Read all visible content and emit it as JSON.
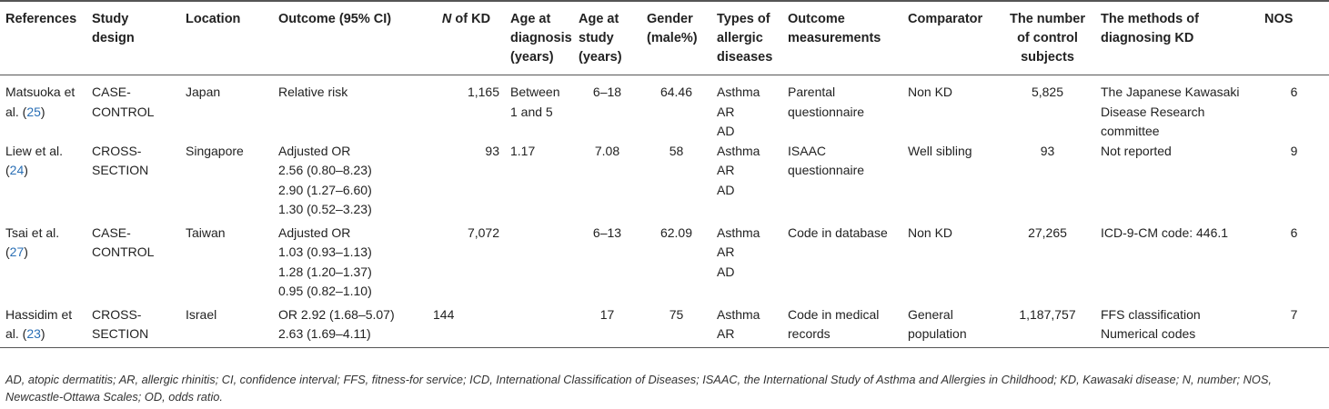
{
  "headers": {
    "references": "References",
    "study_design": "Study design",
    "location": "Location",
    "outcome": "Outcome (95% CI)",
    "n_of_kd_n": "N",
    "n_of_kd_rest": " of KD",
    "age_diagnosis": "Age at diagnosis (years)",
    "age_study": "Age at study (years)",
    "gender": "Gender (male%)",
    "types": "Types of allergic diseases",
    "outcome_measurements": "Outcome measurements",
    "comparator": "Comparator",
    "control_subjects": "The number of control subjects",
    "methods": "The methods of diagnosing KD",
    "nos": "NOS"
  },
  "rows": [
    {
      "ref_text": "Matsuoka et al. (",
      "ref_num": "25",
      "ref_close": ")",
      "design": "CASE-CONTROL",
      "location": "Japan",
      "outcome": "Relative risk",
      "n_kd": "1,165",
      "age_diag": "Between 1 and 5",
      "age_study": "6–18",
      "gender": "64.46",
      "types": "Asthma\nAR\nAD",
      "measurements": "Parental questionnaire",
      "comparator": "Non KD",
      "controls": "5,825",
      "methods": "The Japanese Kawasaki Disease Research committee",
      "nos": "6"
    },
    {
      "ref_text": "Liew et al. (",
      "ref_num": "24",
      "ref_close": ")",
      "design": "CROSS-SECTION",
      "location": "Singapore",
      "outcome": "Adjusted OR\n2.56 (0.80–8.23)\n2.90 (1.27–6.60)\n1.30 (0.52–3.23)",
      "n_kd": "93",
      "age_diag": "1.17",
      "age_study": "7.08",
      "gender": "58",
      "types": "Asthma\nAR\nAD",
      "measurements": "ISAAC questionnaire",
      "comparator": "Well sibling",
      "controls": "93",
      "methods": "Not reported",
      "nos": "9"
    },
    {
      "ref_text": "Tsai et al. (",
      "ref_num": "27",
      "ref_close": ")",
      "design": "CASE-CONTROL",
      "location": "Taiwan",
      "outcome": "Adjusted OR\n1.03 (0.93–1.13)\n1.28 (1.20–1.37)\n0.95 (0.82–1.10)",
      "n_kd": "7,072",
      "age_diag": "",
      "age_study": "6–13",
      "gender": "62.09",
      "types": "Asthma\nAR\nAD",
      "measurements": "Code in database",
      "comparator": "Non KD",
      "controls": "27,265",
      "methods": "ICD-9-CM code: 446.1",
      "nos": "6"
    },
    {
      "ref_text": "Hassidim et al. (",
      "ref_num": "23",
      "ref_close": ")",
      "design": "CROSS-SECTION",
      "location": "Israel",
      "outcome": "OR 2.92 (1.68–5.07)\n2.63 (1.69–4.11)",
      "n_kd": "144",
      "age_diag": "",
      "age_study": "17",
      "gender": "75",
      "types": "Asthma\nAR",
      "measurements": "Code in medical records",
      "comparator": "General population",
      "controls": "1,187,757",
      "methods": "FFS classification\nNumerical codes",
      "nos": "7"
    }
  ],
  "footnote": "AD, atopic dermatitis; AR, allergic rhinitis; CI, confidence interval; FFS, fitness-for service; ICD, International Classification of Diseases; ISAAC, the International Study of Asthma and Allergies in Childhood; KD, Kawasaki disease; N, number; NOS, Newcastle-Ottawa Scales; OD, odds ratio."
}
